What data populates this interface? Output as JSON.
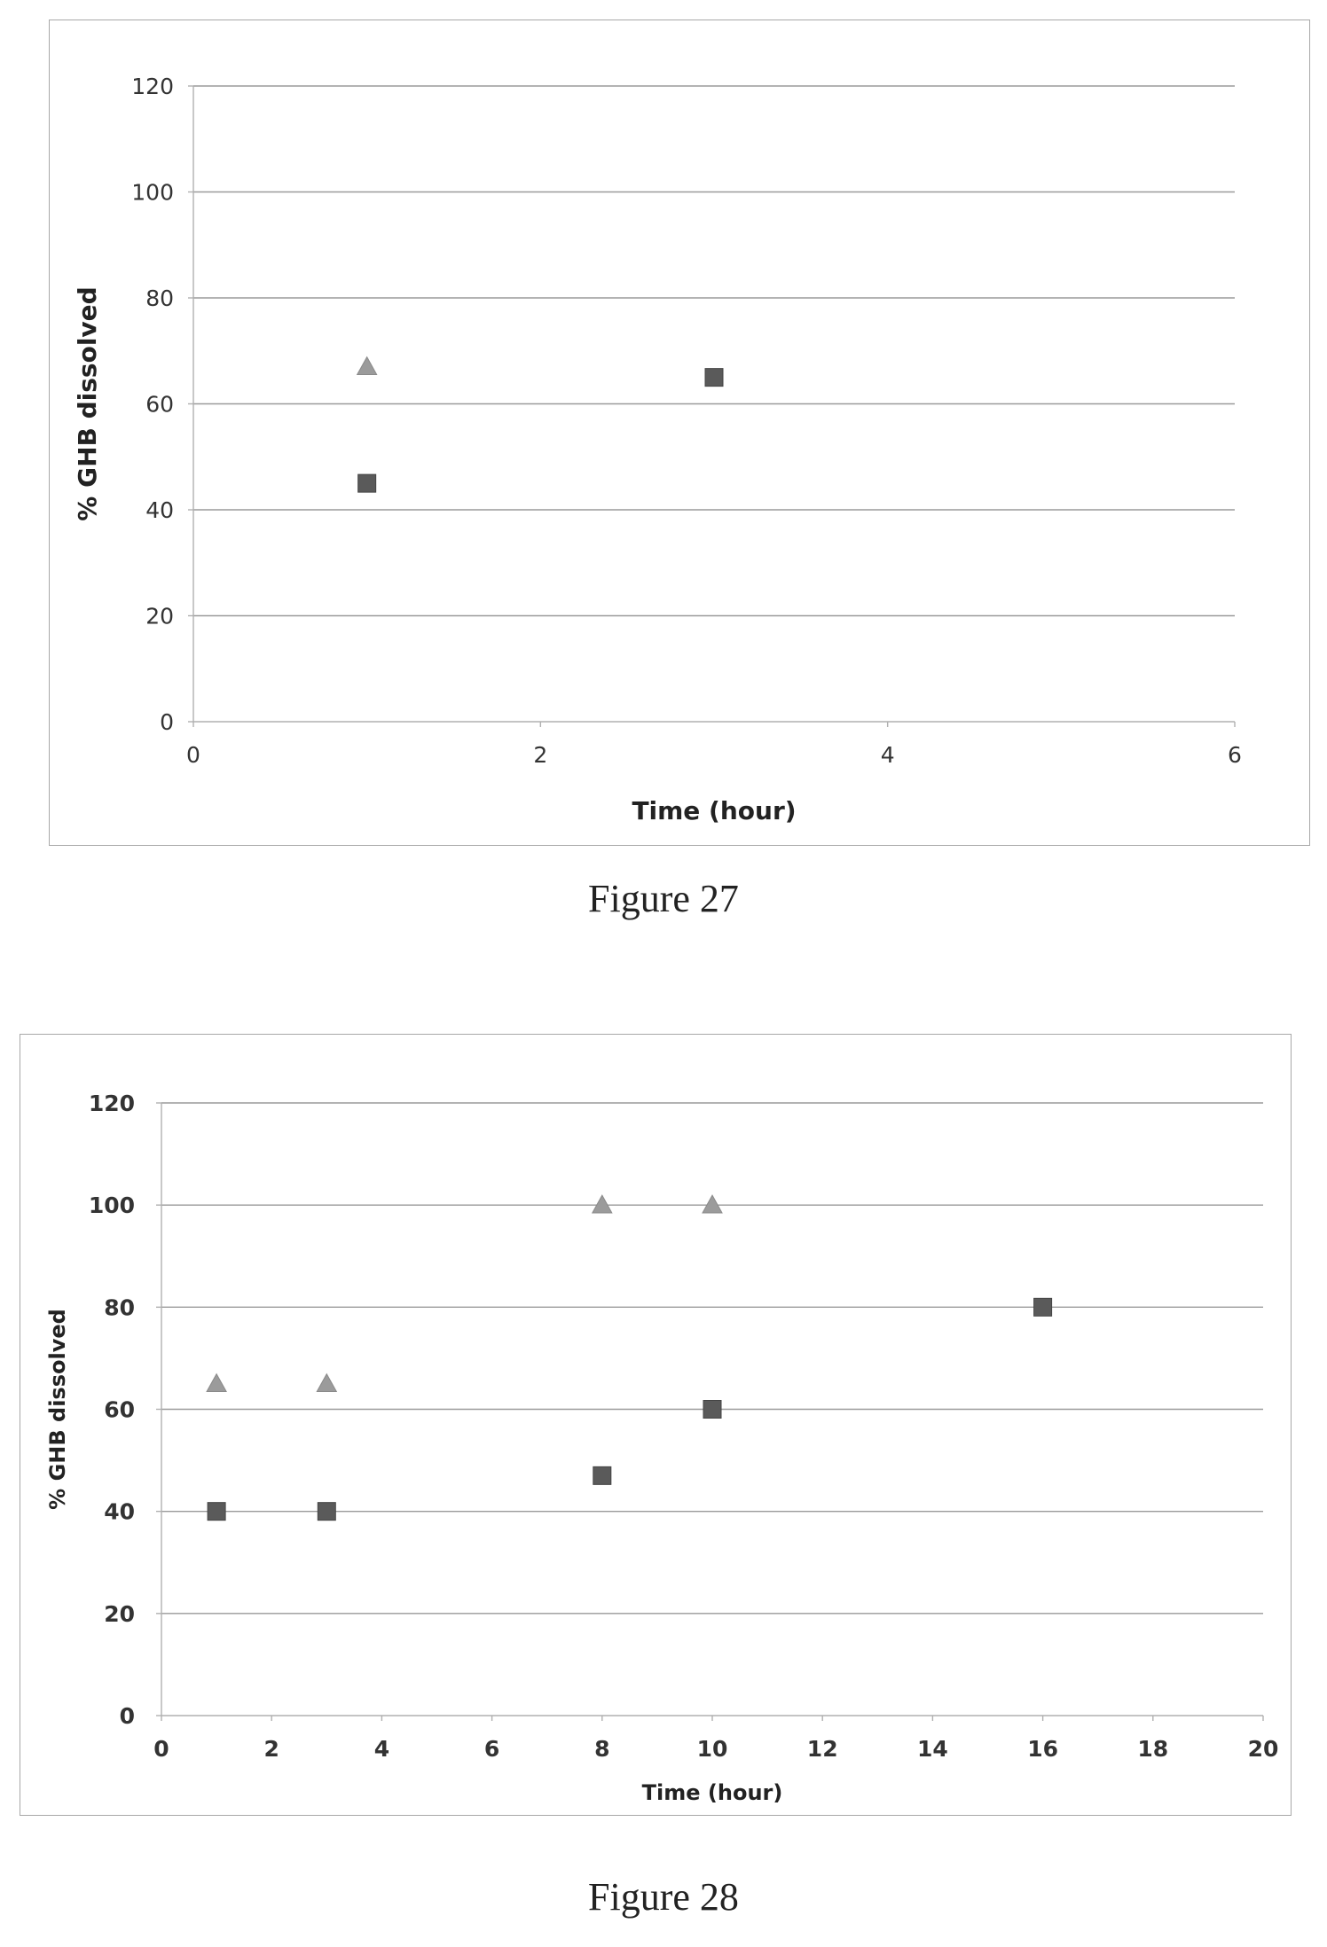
{
  "figures": [
    {
      "caption": "Figure 27"
    },
    {
      "caption": "Figure 28"
    }
  ],
  "colors": {
    "triangle_series": "#9b9b9b",
    "square_series": "#5a5a5a",
    "gridline": "#9a9a9a",
    "axis": "#b0b0b0"
  },
  "chart_data": [
    {
      "type": "scatter",
      "xlabel": "Time (hour)",
      "ylabel": "% GHB dissolved",
      "xlim": [
        0,
        6
      ],
      "ylim": [
        0,
        120
      ],
      "x_ticks": [
        "0",
        "2",
        "4",
        "6"
      ],
      "y_ticks": [
        "0",
        "20",
        "40",
        "60",
        "80",
        "100",
        "120"
      ],
      "grid": true,
      "legend": "none",
      "series": [
        {
          "marker": "triangle",
          "color": "#9b9b9b",
          "points": [
            [
              1,
              67
            ]
          ]
        },
        {
          "marker": "square",
          "color": "#5a5a5a",
          "points": [
            [
              1,
              45
            ],
            [
              3,
              65
            ]
          ]
        }
      ]
    },
    {
      "type": "scatter",
      "xlabel": "Time (hour)",
      "ylabel": "% GHB dissolved",
      "xlim": [
        0,
        20
      ],
      "ylim": [
        0,
        120
      ],
      "x_ticks": [
        "0",
        "2",
        "4",
        "6",
        "8",
        "10",
        "12",
        "14",
        "16",
        "18",
        "20"
      ],
      "y_ticks": [
        "0",
        "20",
        "40",
        "60",
        "80",
        "100",
        "120"
      ],
      "grid": true,
      "legend": "none",
      "series": [
        {
          "marker": "triangle",
          "color": "#9b9b9b",
          "points": [
            [
              1,
              65
            ],
            [
              3,
              65
            ],
            [
              8,
              100
            ],
            [
              10,
              100
            ]
          ]
        },
        {
          "marker": "square",
          "color": "#5a5a5a",
          "points": [
            [
              1,
              40
            ],
            [
              3,
              40
            ],
            [
              8,
              47
            ],
            [
              10,
              60
            ],
            [
              16,
              80
            ]
          ]
        }
      ]
    }
  ]
}
